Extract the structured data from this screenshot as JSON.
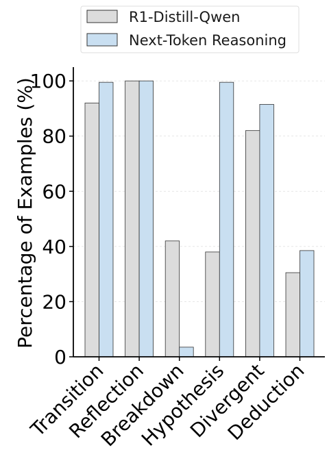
{
  "chart_data": {
    "type": "bar",
    "title": "",
    "xlabel": "",
    "ylabel": "Percentage of Examples (%)",
    "categories": [
      "Transition",
      "Reflection",
      "Breakdown",
      "Hypothesis",
      "Divergent",
      "Deduction"
    ],
    "series": [
      {
        "name": "R1-Distill-Qwen",
        "values": [
          92,
          100,
          42,
          38,
          82,
          30.5
        ],
        "color": "#dcdcdc"
      },
      {
        "name": "Next-Token Reasoning",
        "values": [
          99.5,
          100,
          3.5,
          99.5,
          91.5,
          38.5
        ],
        "color": "#c9dff1"
      }
    ],
    "ylim": [
      0,
      105
    ],
    "yticks": [
      0,
      20,
      40,
      60,
      80,
      100
    ],
    "grid": true,
    "legend": "top-center"
  }
}
